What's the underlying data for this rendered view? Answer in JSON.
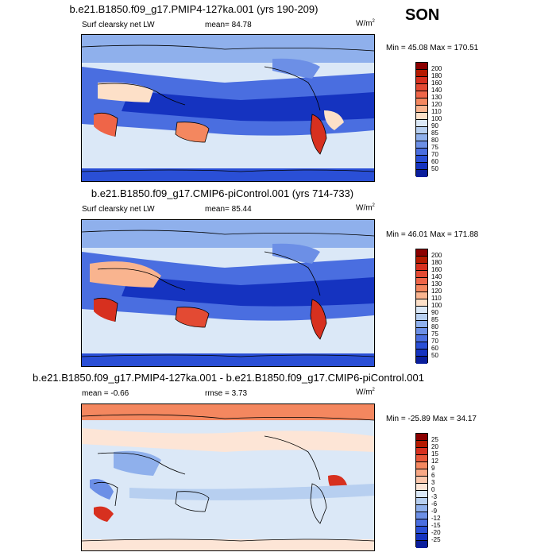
{
  "season": "SON",
  "panels": [
    {
      "title": "b.e21.B1850.f09_g17.PMIP4-127ka.001 (yrs 190-209)",
      "variable": "Surf clearsky net LW",
      "stat": "mean=  84.78",
      "units": "W/m",
      "units_sup": "2",
      "minmax": "Min = 45.08 Max = 170.51"
    },
    {
      "title": "b.e21.B1850.f09_g17.CMIP6-piControl.001 (yrs 714-733)",
      "variable": "Surf clearsky net LW",
      "stat": "mean=  85.44",
      "units": "W/m",
      "units_sup": "2",
      "minmax": "Min = 46.01 Max = 171.88"
    },
    {
      "title": "b.e21.B1850.f09_g17.PMIP4-127ka.001 - b.e21.B1850.f09_g17.CMIP6-piControl.001",
      "stat_mean": "mean =  -0.66",
      "stat_rmse": "rmse =   3.73",
      "units": "W/m",
      "units_sup": "2",
      "minmax": "Min = -25.89 Max = 34.17"
    }
  ],
  "chart_data": [
    {
      "type": "heatmap",
      "title": "b.e21.B1850.f09_g17.PMIP4-127ka.001 (yrs 190-209)",
      "variable": "Surf clearsky net LW",
      "units": "W/m2",
      "mean": 84.78,
      "min": 45.08,
      "max": 170.51,
      "colorbar_levels": [
        "200",
        "180",
        "160",
        "140",
        "130",
        "120",
        "110",
        "100",
        "90",
        "85",
        "80",
        "75",
        "70",
        "60",
        "50"
      ],
      "colorbar_colors": [
        "#8b0000",
        "#b51a00",
        "#d7301f",
        "#e34a33",
        "#ef6548",
        "#f4875f",
        "#f9b48f",
        "#fde0c8",
        "#dbe8f7",
        "#b7cff0",
        "#8fb0ec",
        "#6c8fe6",
        "#4a6ee0",
        "#2a4fd6",
        "#1533c0",
        "#0a1e9c"
      ]
    },
    {
      "type": "heatmap",
      "title": "b.e21.B1850.f09_g17.CMIP6-piControl.001 (yrs 714-733)",
      "variable": "Surf clearsky net LW",
      "units": "W/m2",
      "mean": 85.44,
      "min": 46.01,
      "max": 171.88,
      "colorbar_levels": [
        "200",
        "180",
        "160",
        "140",
        "130",
        "120",
        "110",
        "100",
        "90",
        "85",
        "80",
        "75",
        "70",
        "60",
        "50"
      ],
      "colorbar_colors": [
        "#8b0000",
        "#b51a00",
        "#d7301f",
        "#e34a33",
        "#ef6548",
        "#f4875f",
        "#f9b48f",
        "#fde0c8",
        "#dbe8f7",
        "#b7cff0",
        "#8fb0ec",
        "#6c8fe6",
        "#4a6ee0",
        "#2a4fd6",
        "#1533c0",
        "#0a1e9c"
      ]
    },
    {
      "type": "heatmap",
      "title": "b.e21.B1850.f09_g17.PMIP4-127ka.001 - b.e21.B1850.f09_g17.CMIP6-piControl.001",
      "units": "W/m2",
      "mean": -0.66,
      "rmse": 3.73,
      "min": -25.89,
      "max": 34.17,
      "colorbar_levels": [
        "25",
        "20",
        "15",
        "12",
        "9",
        "6",
        "3",
        "0",
        "-3",
        "-6",
        "-9",
        "-12",
        "-15",
        "-20",
        "-25"
      ],
      "colorbar_colors": [
        "#8b0000",
        "#b51a00",
        "#d7301f",
        "#e8583a",
        "#f4875f",
        "#f9a885",
        "#fcc8ad",
        "#fde5d6",
        "#dbe8f7",
        "#b7cff0",
        "#8fb0ec",
        "#6c8fe6",
        "#4a6ee0",
        "#2a4fd6",
        "#1533c0",
        "#0a1e9c"
      ]
    }
  ]
}
